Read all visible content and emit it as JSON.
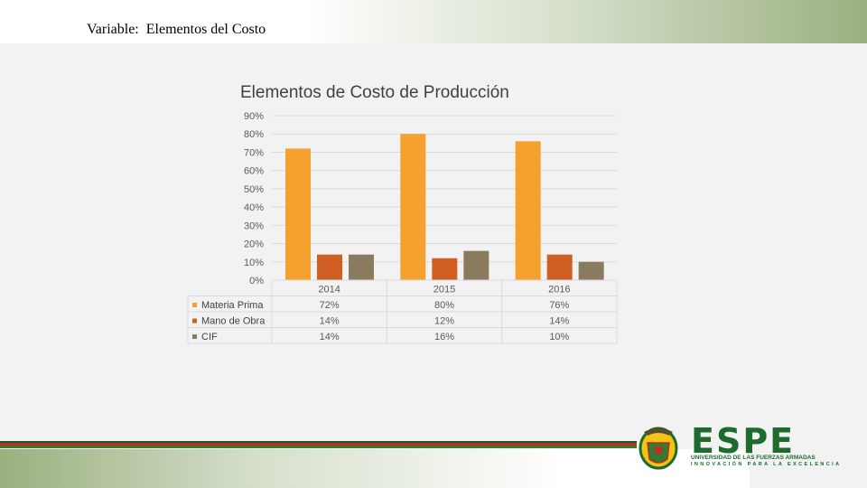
{
  "slide": {
    "title": "Variable:  Elementos del Costo"
  },
  "chart_data": {
    "type": "bar",
    "title": "Elementos de Costo de Producción",
    "categories": [
      "2014",
      "2015",
      "2016"
    ],
    "series": [
      {
        "name": "Materia Prima",
        "values": [
          72,
          80,
          76
        ],
        "labels": [
          "72%",
          "80%",
          "76%"
        ],
        "color": "#f4a12f"
      },
      {
        "name": "Mano de Obra",
        "values": [
          14,
          12,
          14
        ],
        "labels": [
          "14%",
          "12%",
          "14%"
        ],
        "color": "#d05f24"
      },
      {
        "name": "CIF",
        "values": [
          14,
          16,
          10
        ],
        "labels": [
          "14%",
          "16%",
          "10%"
        ],
        "color": "#8a7a5e"
      }
    ],
    "ylim": [
      0,
      90
    ],
    "yticks": [
      "0%",
      "10%",
      "20%",
      "30%",
      "40%",
      "50%",
      "60%",
      "70%",
      "80%",
      "90%"
    ],
    "grid": true,
    "legend": "data-table-below"
  },
  "footer": {
    "logo_text": "ESPE",
    "logo_sub1": "UNIVERSIDAD DE LAS FUERZAS ARMADAS",
    "logo_sub2": "INNOVACIÓN PARA LA EXCELENCIA",
    "brand_color": "#1e6b2e"
  }
}
